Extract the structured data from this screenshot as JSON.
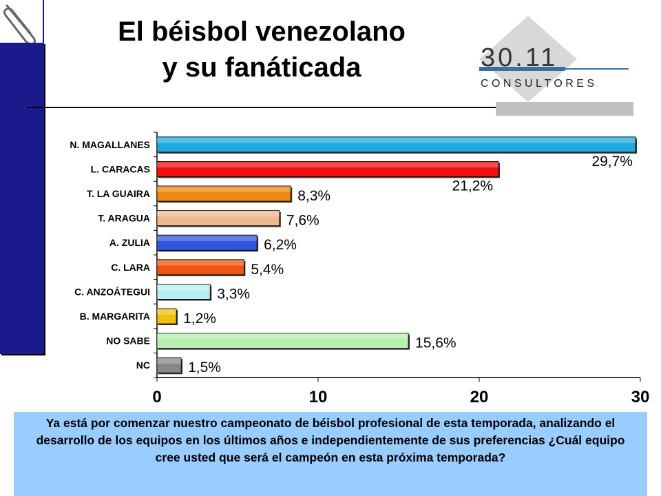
{
  "title": {
    "line1": "El béisbol venezolano",
    "line2": "y su fanáticada"
  },
  "logo": {
    "number": "30.11",
    "word": "C O N S U L T O R E S"
  },
  "question": "Ya está por comenzar nuestro campeonato de béisbol profesional de esta temporada, analizando el desarrollo de los equipos en los últimos años e independientemente de sus preferencias ¿Cuál equipo cree usted que será el campeón en esta próxima temporada?",
  "chart_data": {
    "type": "bar",
    "orientation": "horizontal",
    "categories": [
      "N. MAGALLANES",
      "L. CARACAS",
      "T. LA GUAIRA",
      "T. ARAGUA",
      "A. ZULIA",
      "C. LARA",
      "C. ANZOÁTEGUI",
      "B. MARGARITA",
      "NO  SABE",
      "NC"
    ],
    "values": [
      29.7,
      21.2,
      8.3,
      7.6,
      6.2,
      5.4,
      3.3,
      1.2,
      15.6,
      1.5
    ],
    "value_labels": [
      "29,7%",
      "21,2%",
      "8,3%",
      "7,6%",
      "6,2%",
      "5,4%",
      "3,3%",
      "1,2%",
      "15,6%",
      "1,5%"
    ],
    "colors": [
      "#22aadd",
      "#ee1111",
      "#ee8811",
      "#f0b890",
      "#3355dd",
      "#ee5511",
      "#b8eef0",
      "#f0c010",
      "#b8eeb0",
      "#888888"
    ],
    "xlim": [
      0,
      30
    ],
    "xticks": [
      "0",
      "10",
      "20",
      "30"
    ],
    "grid": false
  }
}
